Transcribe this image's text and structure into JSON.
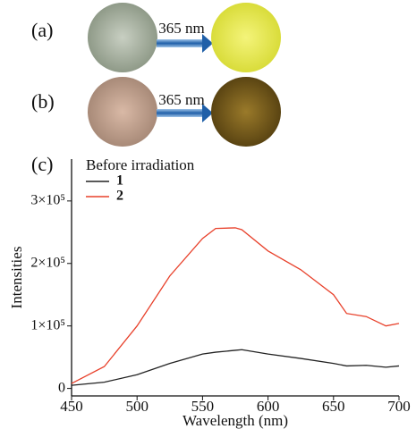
{
  "panels": {
    "a": {
      "label": "(a)",
      "arrow_label": "365 nm"
    },
    "b": {
      "label": "(b)",
      "arrow_label": "365 nm"
    }
  },
  "chart_data": {
    "type": "line",
    "panel_label": "(c)",
    "legend_title": "Before irradiation",
    "legend": "upper left",
    "x_label": "Wavelength (nm)",
    "y_label": "Intensities",
    "x": [
      450,
      475,
      500,
      525,
      550,
      560,
      575,
      580,
      600,
      625,
      650,
      660,
      675,
      690,
      700
    ],
    "series": [
      {
        "name": "1",
        "color": "#222222",
        "values": [
          5000,
          10000,
          22000,
          40000,
          55000,
          58000,
          61000,
          62000,
          55000,
          48000,
          40000,
          36000,
          37000,
          34000,
          36000
        ]
      },
      {
        "name": "2",
        "color": "#e8402a",
        "values": [
          8000,
          35000,
          100000,
          180000,
          240000,
          256000,
          257000,
          254000,
          220000,
          190000,
          150000,
          120000,
          115000,
          100000,
          104000
        ]
      }
    ],
    "xlim": [
      450,
      700
    ],
    "xticks": [
      450,
      500,
      550,
      600,
      650,
      700
    ],
    "ylim": [
      -12000,
      367000
    ],
    "yticks": [
      0,
      {
        "value": 100000,
        "label": "1×10⁵"
      },
      {
        "value": 200000,
        "label": "2×10⁵"
      },
      {
        "value": 300000,
        "label": "3×10⁵"
      }
    ]
  }
}
